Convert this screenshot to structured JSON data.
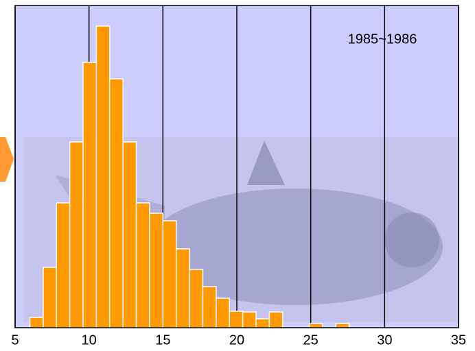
{
  "chart_data": {
    "type": "histogram",
    "annotation": "1985~1986",
    "bins": [
      6,
      6.9,
      7.8,
      8.7,
      9.6,
      10.5,
      11.4,
      12.3,
      13.2,
      14.1,
      15,
      15.9,
      16.8,
      17.7,
      18.6,
      19.5,
      20.4,
      21.3,
      22.2,
      23.1,
      24,
      24.9,
      25.8,
      26.7,
      27.6
    ],
    "values": [
      15,
      88,
      182,
      271,
      387,
      440,
      363,
      271,
      182,
      167,
      156,
      115,
      85,
      60,
      43,
      24,
      23,
      13,
      23,
      0,
      0,
      6,
      0,
      6
    ],
    "color": "#ff9900",
    "xlim": [
      5,
      35
    ],
    "xticks": [
      5,
      10,
      15,
      20,
      25,
      30,
      35
    ],
    "ylim": [
      0,
      470
    ],
    "grid": true
  }
}
